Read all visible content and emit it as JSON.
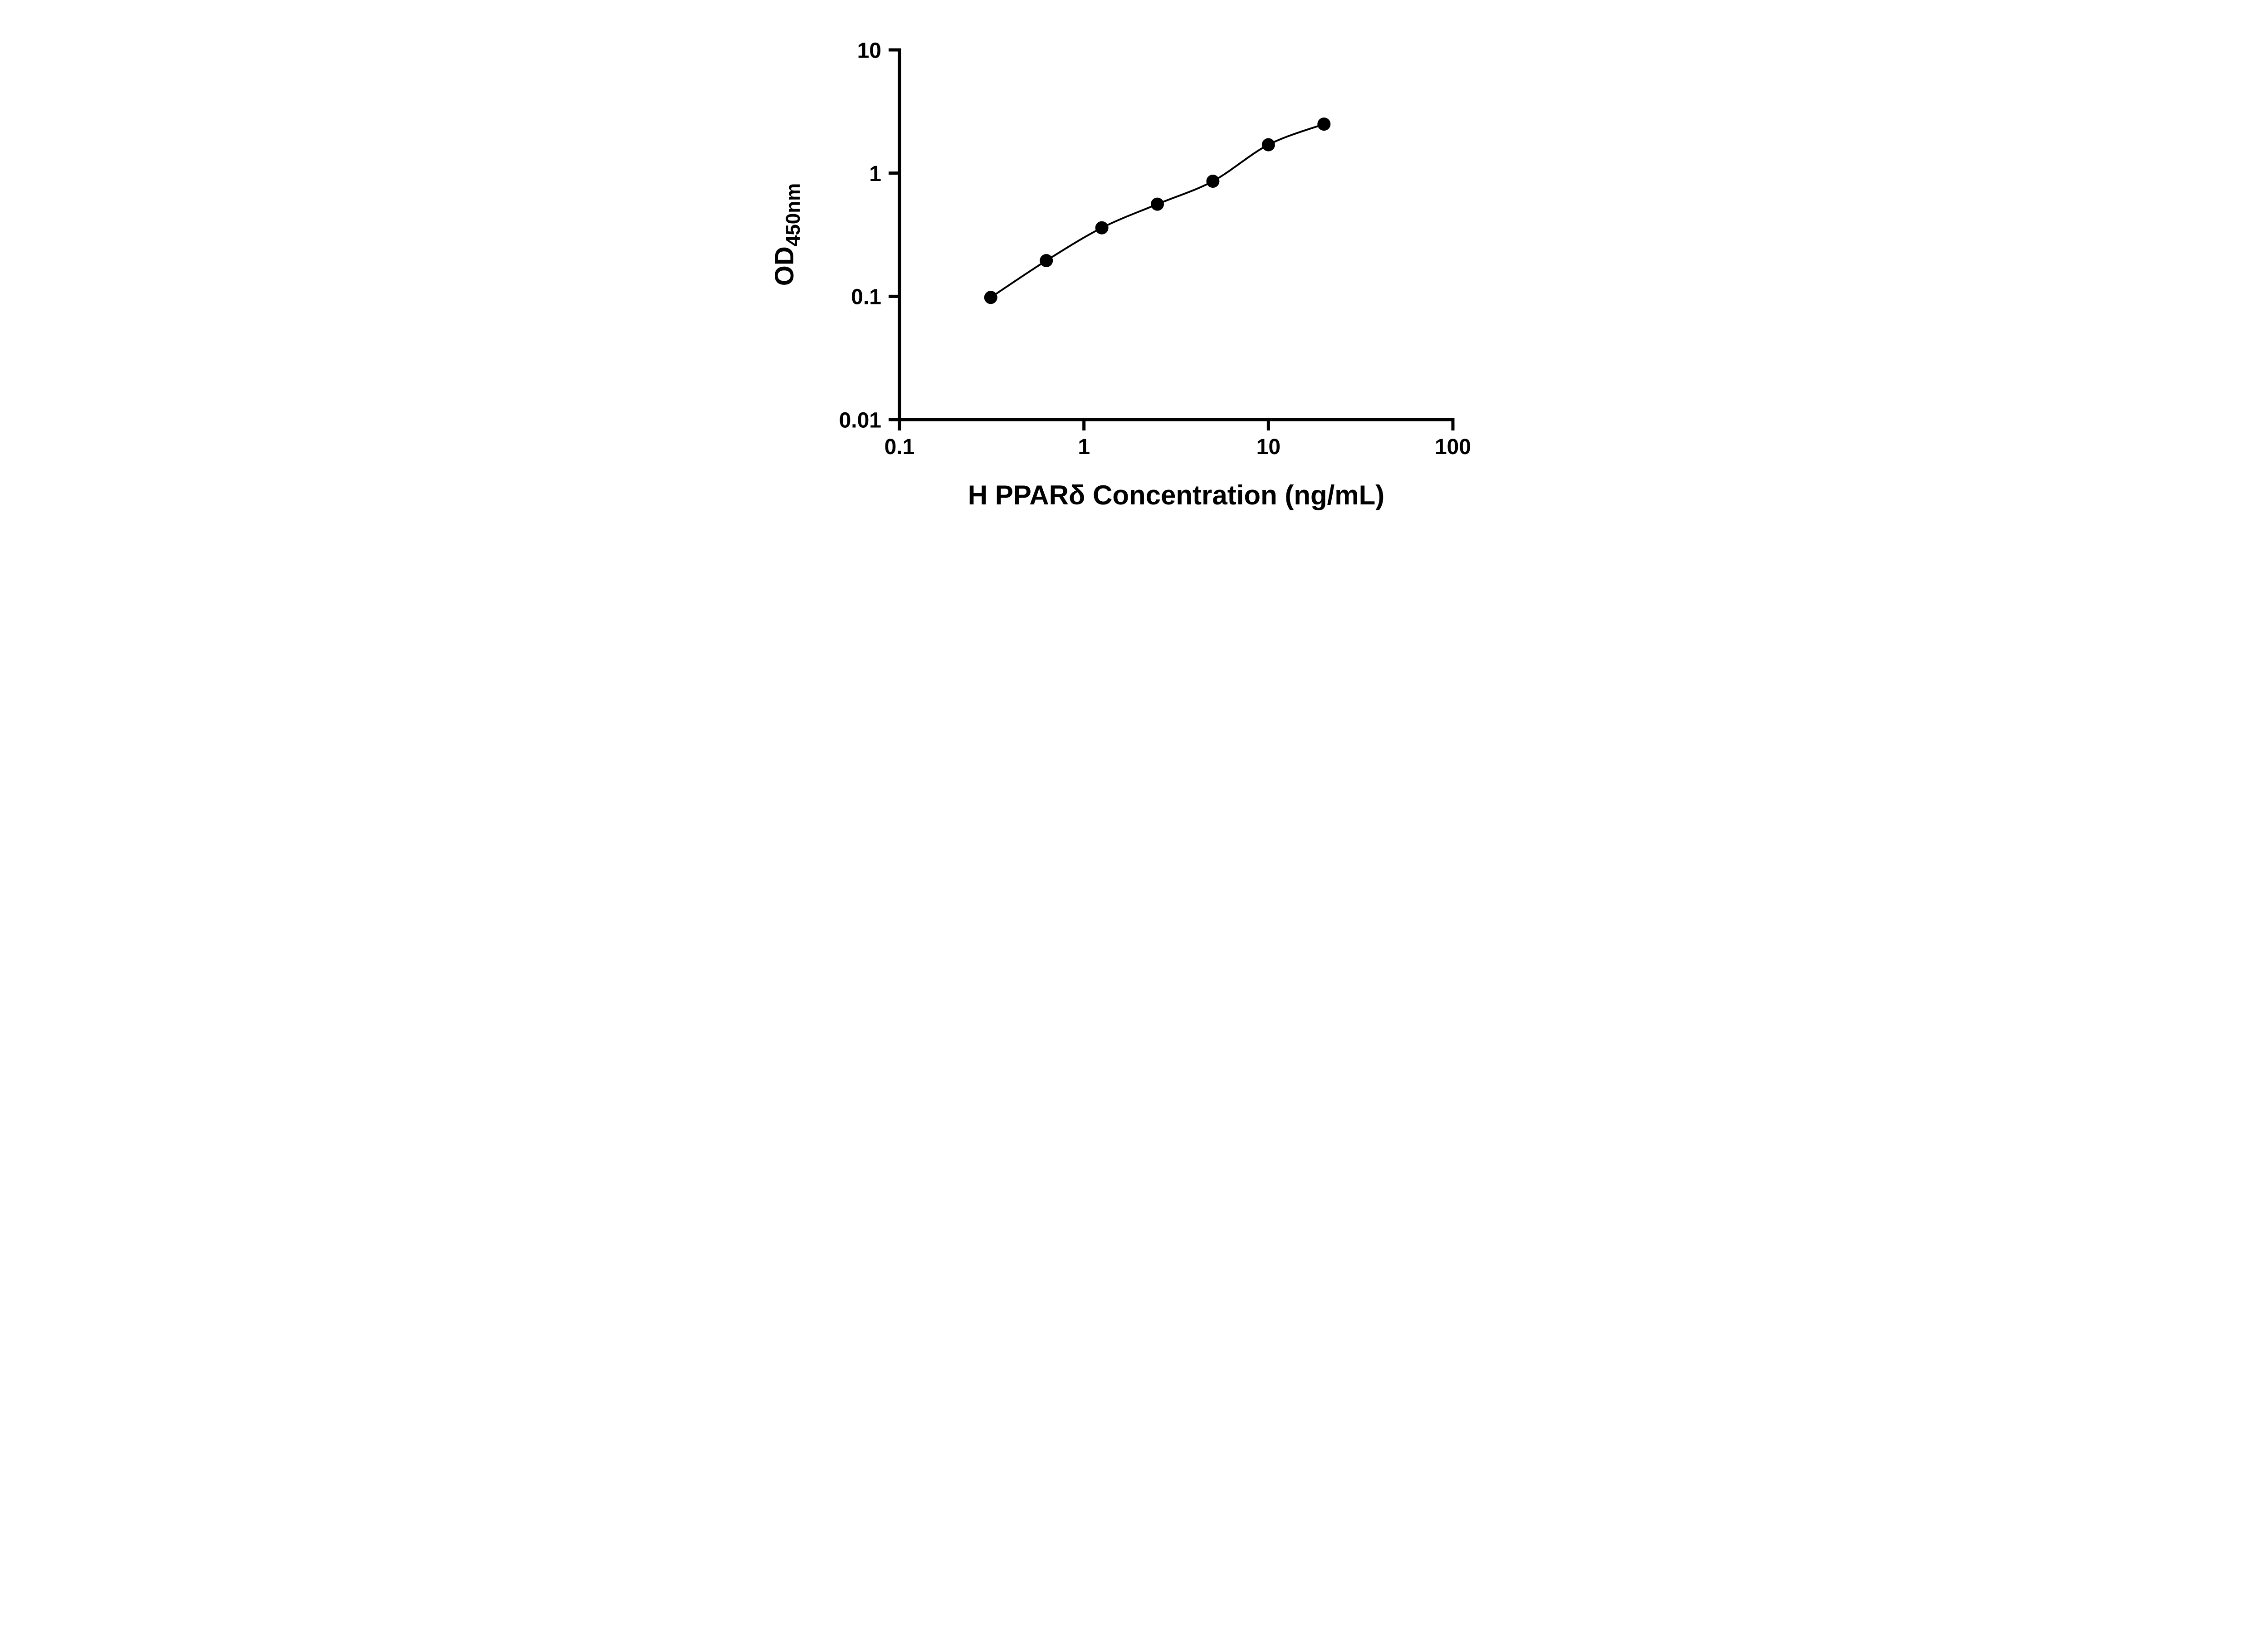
{
  "page": {
    "background_color": "#ffffff"
  },
  "chart_data": {
    "type": "scatter",
    "title": "",
    "xlabel": "H PPARδ Concentration (ng/mL)",
    "ylabel_main": "OD",
    "ylabel_sub": "450nm",
    "x_scale": "log",
    "y_scale": "log",
    "xlim": [
      0.1,
      100
    ],
    "ylim": [
      0.01,
      10
    ],
    "x_tick_values": [
      0.1,
      1,
      10,
      100
    ],
    "x_tick_labels": [
      "0.1",
      "1",
      "10",
      "100"
    ],
    "y_tick_values": [
      0.01,
      0.1,
      1,
      10
    ],
    "y_tick_labels": [
      "0.01",
      "0.1",
      "1",
      "10"
    ],
    "x": [
      0.3125,
      0.625,
      1.25,
      2.5,
      5,
      10,
      20
    ],
    "y": [
      0.098,
      0.195,
      0.36,
      0.56,
      0.86,
      1.7,
      2.5
    ],
    "grid": false,
    "legend": "none",
    "curve_fit": "smooth curve through points",
    "axis_color": "#000000",
    "line_color": "#000000",
    "marker_color": "#000000",
    "marker_size": 14.5
  }
}
